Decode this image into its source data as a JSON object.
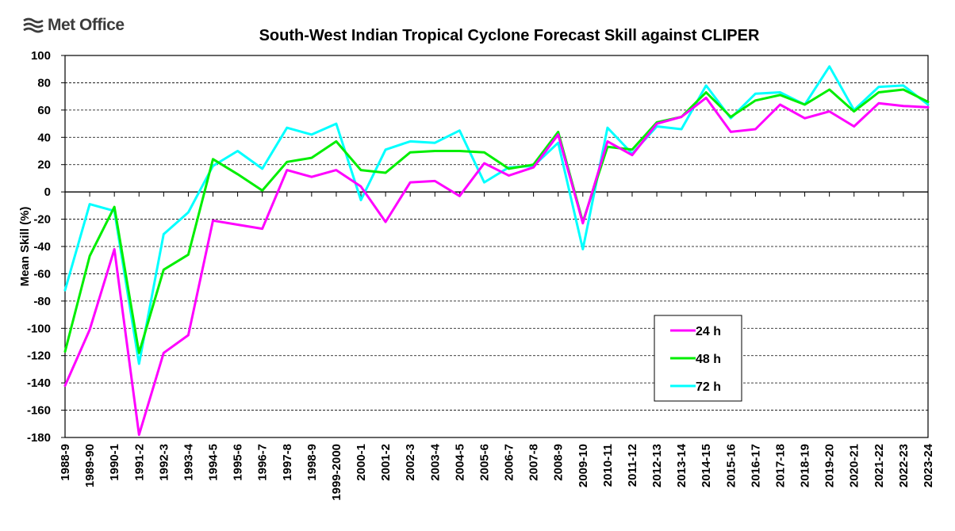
{
  "brand": {
    "name": "Met Office"
  },
  "chart_data": {
    "type": "line",
    "title": "South-West Indian Tropical Cyclone Forecast Skill against CLIPER",
    "xlabel": "",
    "ylabel": "Mean Skill (%)",
    "ylim": [
      -180,
      100
    ],
    "yticks": [
      100,
      80,
      60,
      40,
      20,
      0,
      -20,
      -40,
      -60,
      -80,
      -100,
      -120,
      -140,
      -160,
      -180
    ],
    "grid": true,
    "legend_position": "bottom-right",
    "categories": [
      "1988-9",
      "1989-90",
      "1990-1",
      "1991-2",
      "1992-3",
      "1993-4",
      "1994-5",
      "1995-6",
      "1996-7",
      "1997-8",
      "1998-9",
      "1999-2000",
      "2000-1",
      "2001-2",
      "2002-3",
      "2003-4",
      "2004-5",
      "2005-6",
      "2006-7",
      "2007-8",
      "2008-9",
      "2009-10",
      "2010-11",
      "2011-12",
      "2012-13",
      "2013-14",
      "2014-15",
      "2015-16",
      "2016-17",
      "2017-18",
      "2018-19",
      "2019-20",
      "2020-21",
      "2021-22",
      "2022-23",
      "2023-24"
    ],
    "series": [
      {
        "name": "24 h",
        "color": "#ff00ff",
        "values": [
          -142,
          -101,
          -42,
          -178,
          -118,
          -105,
          -21,
          -24,
          -27,
          16,
          11,
          16,
          4,
          -22,
          7,
          8,
          -3,
          21,
          12,
          18,
          42,
          -23,
          37,
          27,
          50,
          55,
          69,
          44,
          46,
          64,
          54,
          59,
          48,
          65,
          63,
          62
        ]
      },
      {
        "name": "48 h",
        "color": "#00ee00",
        "values": [
          -117,
          -47,
          -11,
          -118,
          -57,
          -46,
          24,
          13,
          1,
          22,
          25,
          37,
          16,
          14,
          29,
          30,
          30,
          29,
          17,
          20,
          44,
          -22,
          33,
          31,
          51,
          55,
          73,
          55,
          67,
          71,
          64,
          75,
          59,
          73,
          75,
          66
        ]
      },
      {
        "name": "72 h",
        "color": "#00ffff",
        "values": [
          -72,
          -9,
          -14,
          -126,
          -31,
          -15,
          19,
          30,
          17,
          47,
          42,
          50,
          -6,
          31,
          37,
          36,
          45,
          7,
          18,
          19,
          36,
          -42,
          47,
          28,
          48,
          46,
          78,
          54,
          72,
          73,
          64,
          92,
          60,
          77,
          78,
          64
        ]
      }
    ]
  }
}
